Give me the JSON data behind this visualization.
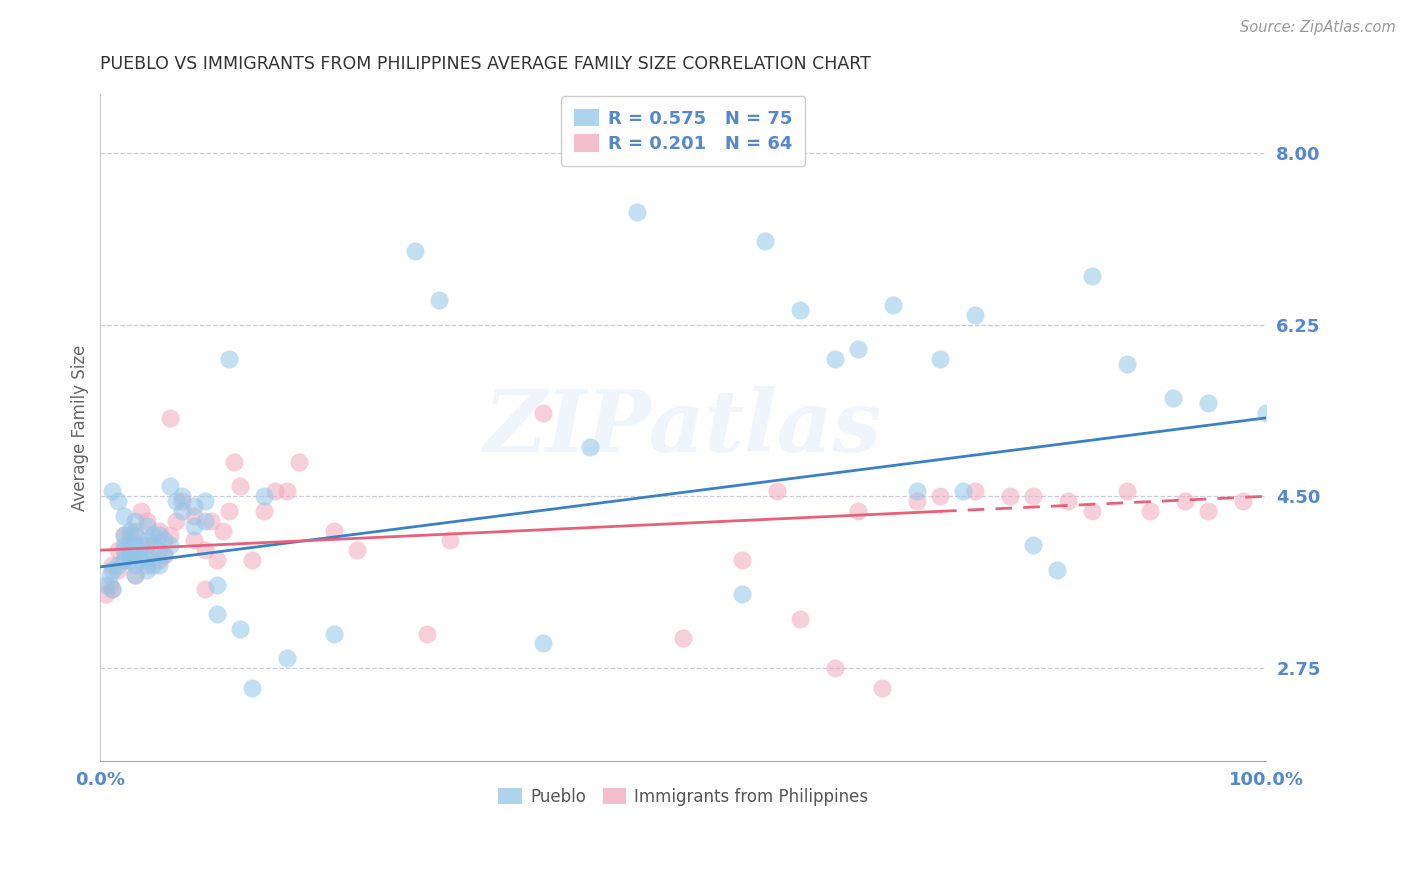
{
  "title": "PUEBLO VS IMMIGRANTS FROM PHILIPPINES AVERAGE FAMILY SIZE CORRELATION CHART",
  "source": "Source: ZipAtlas.com",
  "ylabel": "Average Family Size",
  "watermark": "ZIPatlas",
  "legend1_r": "0.575",
  "legend1_n": "75",
  "legend2_r": "0.201",
  "legend2_n": "64",
  "xmin": 0.0,
  "xmax": 1.0,
  "ymin": 1.8,
  "ymax": 8.6,
  "yticks": [
    2.75,
    4.5,
    6.25,
    8.0
  ],
  "bg_color": "#ffffff",
  "grid_color": "#ccccdd",
  "blue_color": "#92C5E8",
  "pink_color": "#F2A8BC",
  "blue_line_color": "#3B82C4",
  "pink_line_color": "#E8607A",
  "axis_label_color": "#5588CC",
  "title_color": "#333333",
  "blue_line_x0": 0.0,
  "blue_line_y0": 3.78,
  "blue_line_x1": 1.0,
  "blue_line_y1": 5.3,
  "pink_line_x0": 0.0,
  "pink_line_y0": 3.95,
  "pink_line_x1": 1.0,
  "pink_line_y1": 4.5,
  "pink_dash_split": 0.72,
  "pueblo_scatter_x": [
    0.005,
    0.008,
    0.01,
    0.01,
    0.01,
    0.015,
    0.015,
    0.02,
    0.02,
    0.02,
    0.02,
    0.02,
    0.025,
    0.025,
    0.025,
    0.025,
    0.03,
    0.03,
    0.03,
    0.03,
    0.03,
    0.03,
    0.035,
    0.035,
    0.04,
    0.04,
    0.04,
    0.04,
    0.04,
    0.045,
    0.045,
    0.05,
    0.05,
    0.05,
    0.055,
    0.055,
    0.06,
    0.06,
    0.065,
    0.07,
    0.07,
    0.08,
    0.08,
    0.09,
    0.09,
    0.1,
    0.1,
    0.11,
    0.12,
    0.13,
    0.14,
    0.16,
    0.2,
    0.27,
    0.29,
    0.38,
    0.42,
    0.46,
    0.55,
    0.57,
    0.6,
    0.63,
    0.65,
    0.68,
    0.7,
    0.72,
    0.74,
    0.75,
    0.8,
    0.82,
    0.85,
    0.88,
    0.92,
    0.95,
    1.0
  ],
  "pueblo_scatter_y": [
    3.6,
    3.7,
    3.55,
    3.75,
    4.55,
    3.8,
    4.45,
    3.85,
    3.95,
    4.0,
    4.1,
    4.3,
    3.85,
    3.9,
    4.0,
    4.15,
    3.7,
    3.8,
    3.9,
    4.0,
    4.1,
    4.25,
    3.85,
    4.0,
    3.75,
    3.85,
    3.9,
    4.05,
    4.2,
    3.8,
    4.1,
    3.8,
    3.95,
    4.1,
    3.9,
    4.05,
    4.0,
    4.6,
    4.45,
    4.35,
    4.5,
    4.2,
    4.4,
    4.25,
    4.45,
    3.3,
    3.6,
    5.9,
    3.15,
    2.55,
    4.5,
    2.85,
    3.1,
    7.0,
    6.5,
    3.0,
    5.0,
    7.4,
    3.5,
    7.1,
    6.4,
    5.9,
    6.0,
    6.45,
    4.55,
    5.9,
    4.55,
    6.35,
    4.0,
    3.75,
    6.75,
    5.85,
    5.5,
    5.45,
    5.35
  ],
  "phil_scatter_x": [
    0.005,
    0.008,
    0.01,
    0.01,
    0.015,
    0.015,
    0.02,
    0.02,
    0.025,
    0.025,
    0.03,
    0.03,
    0.03,
    0.035,
    0.04,
    0.04,
    0.04,
    0.045,
    0.05,
    0.05,
    0.055,
    0.06,
    0.06,
    0.065,
    0.07,
    0.08,
    0.08,
    0.09,
    0.09,
    0.095,
    0.1,
    0.105,
    0.11,
    0.115,
    0.12,
    0.13,
    0.14,
    0.15,
    0.16,
    0.17,
    0.2,
    0.22,
    0.28,
    0.3,
    0.38,
    0.5,
    0.55,
    0.58,
    0.6,
    0.63,
    0.65,
    0.67,
    0.7,
    0.72,
    0.75,
    0.78,
    0.8,
    0.83,
    0.85,
    0.88,
    0.9,
    0.93,
    0.95,
    0.98
  ],
  "phil_scatter_y": [
    3.5,
    3.6,
    3.55,
    3.8,
    3.75,
    3.95,
    3.85,
    4.1,
    3.9,
    4.1,
    3.7,
    3.9,
    4.15,
    4.35,
    3.8,
    4.0,
    4.25,
    4.0,
    3.85,
    4.15,
    3.9,
    4.1,
    5.3,
    4.25,
    4.45,
    4.05,
    4.3,
    3.55,
    3.95,
    4.25,
    3.85,
    4.15,
    4.35,
    4.85,
    4.6,
    3.85,
    4.35,
    4.55,
    4.55,
    4.85,
    4.15,
    3.95,
    3.1,
    4.05,
    5.35,
    3.05,
    3.85,
    4.55,
    3.25,
    2.75,
    4.35,
    2.55,
    4.45,
    4.5,
    4.55,
    4.5,
    4.5,
    4.45,
    4.35,
    4.55,
    4.35,
    4.45,
    4.35,
    4.45
  ]
}
